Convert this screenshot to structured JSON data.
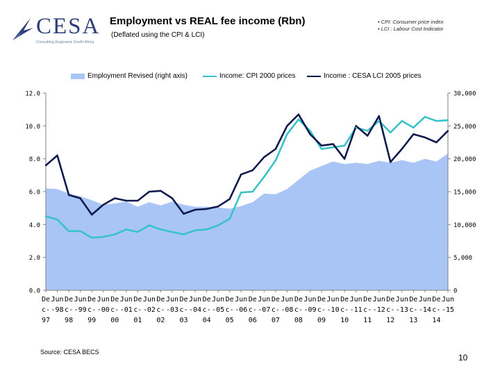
{
  "header": {
    "logo_text": "CESA",
    "logo_tagline": "Consulting Engineers South Africa",
    "title": "Employment vs REAL fee income (Rbn)",
    "subtitle": "(Deflated using the CPI  & LCI)",
    "notes": [
      "• CPI: Consumer price index",
      "• LCI : Labour Cost Indicator"
    ]
  },
  "footer": {
    "source": "Source: CESA BECS",
    "page_number": "10"
  },
  "colors": {
    "employment": "#a9c5f5",
    "cpi": "#38c3c9",
    "lci": "#0e1a4d"
  },
  "chart_data": {
    "type": "line",
    "categories": [
      "Dec-97",
      "Jun-98",
      "Dec-98",
      "Jun-99",
      "Dec-99",
      "Jun-00",
      "Dec-00",
      "Jun-01",
      "Dec-01",
      "Jun-02",
      "Dec-02",
      "Jun-03",
      "Dec-03",
      "Jun-04",
      "Dec-04",
      "Jun-05",
      "Dec-05",
      "Jun-06",
      "Dec-06",
      "Jun-07",
      "Dec-07",
      "Jun-08",
      "Dec-08",
      "Jun-09",
      "Dec-09",
      "Jun-10",
      "Dec-10",
      "Jun-11",
      "Dec-11",
      "Jun-12",
      "Dec-12",
      "Jun-13",
      "Dec-13",
      "Jun-14",
      "Dec-14",
      "Jun-15"
    ],
    "tick_labels": [
      {
        "top": "De",
        "mid": "c-",
        "bottom": "97"
      },
      {
        "top": "Jun",
        "mid": "-98",
        "bottom": ""
      },
      {
        "top": "De",
        "mid": "c-",
        "bottom": "98"
      },
      {
        "top": "Jun",
        "mid": "-99",
        "bottom": ""
      },
      {
        "top": "De",
        "mid": "c-",
        "bottom": "99"
      },
      {
        "top": "Jun",
        "mid": "-00",
        "bottom": ""
      },
      {
        "top": "De",
        "mid": "c-",
        "bottom": "00"
      },
      {
        "top": "Jun",
        "mid": "-01",
        "bottom": ""
      },
      {
        "top": "De",
        "mid": "c-",
        "bottom": "01"
      },
      {
        "top": "Jun",
        "mid": "-02",
        "bottom": ""
      },
      {
        "top": "De",
        "mid": "c-",
        "bottom": "02"
      },
      {
        "top": "Jun",
        "mid": "-03",
        "bottom": ""
      },
      {
        "top": "De",
        "mid": "c-",
        "bottom": "03"
      },
      {
        "top": "Jun",
        "mid": "-04",
        "bottom": ""
      },
      {
        "top": "De",
        "mid": "c-",
        "bottom": "04"
      },
      {
        "top": "Jun",
        "mid": "-05",
        "bottom": ""
      },
      {
        "top": "De",
        "mid": "c-",
        "bottom": "05"
      },
      {
        "top": "Jun",
        "mid": "-06",
        "bottom": ""
      },
      {
        "top": "De",
        "mid": "c-",
        "bottom": "06"
      },
      {
        "top": "Jun",
        "mid": "-07",
        "bottom": ""
      },
      {
        "top": "De",
        "mid": "c-",
        "bottom": "07"
      },
      {
        "top": "Jun",
        "mid": "-08",
        "bottom": ""
      },
      {
        "top": "De",
        "mid": "c-",
        "bottom": "08"
      },
      {
        "top": "Jun",
        "mid": "-09",
        "bottom": ""
      },
      {
        "top": "De",
        "mid": "c-",
        "bottom": "09"
      },
      {
        "top": "Jun",
        "mid": "-10",
        "bottom": ""
      },
      {
        "top": "De",
        "mid": "c-",
        "bottom": "10"
      },
      {
        "top": "Jun",
        "mid": "-11",
        "bottom": ""
      },
      {
        "top": "De",
        "mid": "c-",
        "bottom": "11"
      },
      {
        "top": "Jun",
        "mid": "-12",
        "bottom": ""
      },
      {
        "top": "De",
        "mid": "c-",
        "bottom": "12"
      },
      {
        "top": "Jun",
        "mid": "-13",
        "bottom": ""
      },
      {
        "top": "De",
        "mid": "c-",
        "bottom": "13"
      },
      {
        "top": "Jun",
        "mid": "-14",
        "bottom": ""
      },
      {
        "top": "De",
        "mid": "c-",
        "bottom": "14"
      },
      {
        "top": "Jun",
        "mid": "-15",
        "bottom": ""
      }
    ],
    "series": [
      {
        "name": "Employment Revised (right axis)",
        "type": "area",
        "axis": "right",
        "values": [
          15500,
          15400,
          14700,
          14300,
          13700,
          13000,
          13200,
          13500,
          12700,
          13400,
          12900,
          13500,
          13000,
          12700,
          12700,
          12600,
          12400,
          12800,
          13400,
          14700,
          14600,
          15400,
          16800,
          18200,
          18900,
          19600,
          19200,
          19400,
          19200,
          19700,
          19400,
          19800,
          19400,
          20000,
          19600,
          20800
        ]
      },
      {
        "name": "Income: CPI 2000 prices",
        "type": "line",
        "axis": "left",
        "values": [
          4.5,
          4.3,
          3.6,
          3.6,
          3.2,
          3.25,
          3.4,
          3.7,
          3.55,
          3.95,
          3.7,
          3.55,
          3.4,
          3.65,
          3.7,
          3.95,
          4.35,
          5.95,
          6.0,
          6.9,
          7.9,
          9.5,
          10.4,
          9.7,
          8.6,
          8.7,
          8.8,
          9.9,
          9.7,
          10.3,
          9.6,
          10.3,
          9.9,
          10.55,
          10.3,
          10.35
        ]
      },
      {
        "name": "Income : CESA LCI 2005 prices",
        "type": "line",
        "axis": "left",
        "values": [
          7.6,
          8.2,
          5.8,
          5.6,
          4.6,
          5.2,
          5.6,
          5.45,
          5.45,
          6.0,
          6.05,
          5.6,
          4.65,
          4.9,
          4.95,
          5.1,
          5.55,
          7.05,
          7.3,
          8.1,
          8.6,
          10.0,
          10.7,
          9.5,
          8.8,
          8.9,
          8.0,
          10.0,
          9.4,
          10.6,
          7.8,
          8.6,
          9.5,
          9.3,
          9.0,
          9.7
        ]
      }
    ],
    "y_left": {
      "min": 0,
      "max": 12,
      "ticks": [
        "0.0",
        "2.0",
        "4.0",
        "6.0",
        "8.0",
        "10.0",
        "12.0"
      ]
    },
    "y_right": {
      "min": 0,
      "max": 30000,
      "ticks": [
        "0",
        "5,000",
        "10,000",
        "15,000",
        "20,000",
        "25,000",
        "30,000"
      ]
    },
    "legend": [
      "Employment Revised (right axis)",
      "Income: CPI 2000 prices",
      "Income : CESA LCI 2005 prices"
    ],
    "legend_position": "top"
  }
}
